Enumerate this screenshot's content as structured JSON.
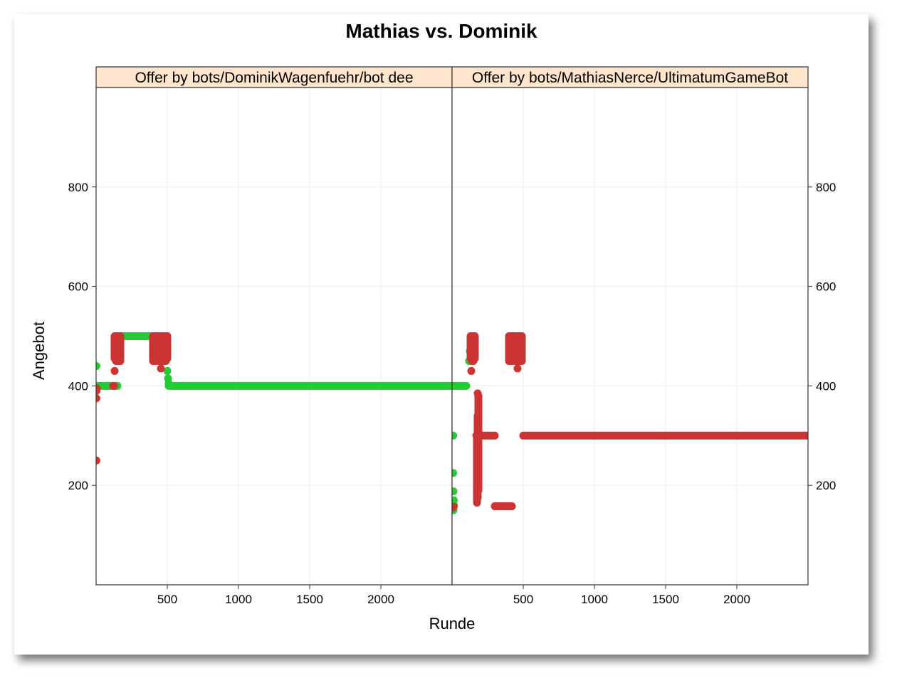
{
  "chart_data": {
    "type": "scatter",
    "title": "Mathias vs. Dominik",
    "xlabel": "Runde",
    "ylabel": "Angebot",
    "xlim": [
      0,
      2500
    ],
    "ylim": [
      0,
      1000
    ],
    "x_ticks": [
      500,
      1000,
      1500,
      2000
    ],
    "y_ticks": [
      200,
      400,
      600,
      800
    ],
    "grid": true,
    "colors": {
      "green": "#22cc33",
      "red": "#cc3333",
      "strip": "#ffe5cc"
    },
    "panels": [
      {
        "strip": "Offer by bots/DominikWagenfuehr/bot dee",
        "series": [
          {
            "color": "green",
            "segments": [
              [
                0,
                400,
                150,
                400
              ],
              [
                150,
                500,
                470,
                500
              ],
              [
                510,
                400,
                2500,
                400
              ]
            ],
            "points": [
              [
                2,
                440
              ],
              [
                5,
                400
              ],
              [
                125,
                400
              ],
              [
                130,
                460
              ],
              [
                130,
                475
              ],
              [
                135,
                480
              ],
              [
                140,
                490
              ],
              [
                150,
                500
              ],
              [
                500,
                430
              ],
              [
                505,
                415
              ],
              [
                510,
                405
              ]
            ]
          },
          {
            "color": "red",
            "segments": [
              [
                130,
                455,
                130,
                500
              ],
              [
                140,
                450,
                140,
                500
              ],
              [
                150,
                450,
                150,
                500
              ],
              [
                160,
                450,
                160,
                500
              ],
              [
                170,
                450,
                170,
                500
              ],
              [
                400,
                450,
                400,
                500
              ],
              [
                410,
                450,
                410,
                500
              ],
              [
                420,
                450,
                420,
                500
              ],
              [
                430,
                455,
                430,
                500
              ],
              [
                440,
                450,
                440,
                500
              ],
              [
                450,
                450,
                450,
                500
              ],
              [
                460,
                450,
                460,
                500
              ],
              [
                470,
                450,
                470,
                500
              ],
              [
                480,
                450,
                480,
                500
              ],
              [
                490,
                450,
                490,
                500
              ],
              [
                500,
                455,
                500,
                500
              ]
            ],
            "points": [
              [
                2,
                250
              ],
              [
                2,
                375
              ],
              [
                3,
                390
              ],
              [
                5,
                395
              ],
              [
                120,
                400
              ],
              [
                125,
                400
              ],
              [
                130,
                430
              ],
              [
                145,
                475
              ],
              [
                165,
                480
              ],
              [
                455,
                435
              ],
              [
                460,
                475
              ]
            ]
          }
        ]
      },
      {
        "strip": "Offer by bots/MathiasNerce/UltimatumGameBot",
        "series": [
          {
            "color": "green",
            "segments": [
              [
                0,
                400,
                100,
                400
              ]
            ],
            "points": [
              [
                8,
                300
              ],
              [
                8,
                225
              ],
              [
                10,
                188
              ],
              [
                12,
                170
              ],
              [
                14,
                160
              ],
              [
                10,
                150
              ],
              [
                120,
                450
              ],
              [
                125,
                470
              ],
              [
                130,
                490
              ]
            ]
          },
          {
            "color": "red",
            "segments": [
              [
                130,
                455,
                130,
                500
              ],
              [
                140,
                450,
                140,
                500
              ],
              [
                150,
                450,
                150,
                500
              ],
              [
                160,
                455,
                160,
                500
              ],
              [
                170,
                300,
                300,
                300
              ],
              [
                175,
                165,
                175,
                300
              ],
              [
                180,
                175,
                180,
                340
              ],
              [
                185,
                190,
                185,
                380
              ],
              [
                300,
                158,
                420,
                158
              ],
              [
                400,
                450,
                400,
                500
              ],
              [
                410,
                450,
                410,
                500
              ],
              [
                420,
                450,
                420,
                500
              ],
              [
                430,
                460,
                430,
                500
              ],
              [
                440,
                450,
                440,
                500
              ],
              [
                450,
                450,
                450,
                500
              ],
              [
                460,
                455,
                460,
                500
              ],
              [
                470,
                450,
                470,
                500
              ],
              [
                480,
                450,
                480,
                500
              ],
              [
                490,
                450,
                490,
                500
              ],
              [
                500,
                300,
                2500,
                300
              ]
            ],
            "points": [
              [
                4,
                155
              ],
              [
                12,
                157
              ],
              [
                135,
                430
              ],
              [
                180,
                385
              ],
              [
                460,
                435
              ]
            ]
          }
        ]
      }
    ]
  }
}
